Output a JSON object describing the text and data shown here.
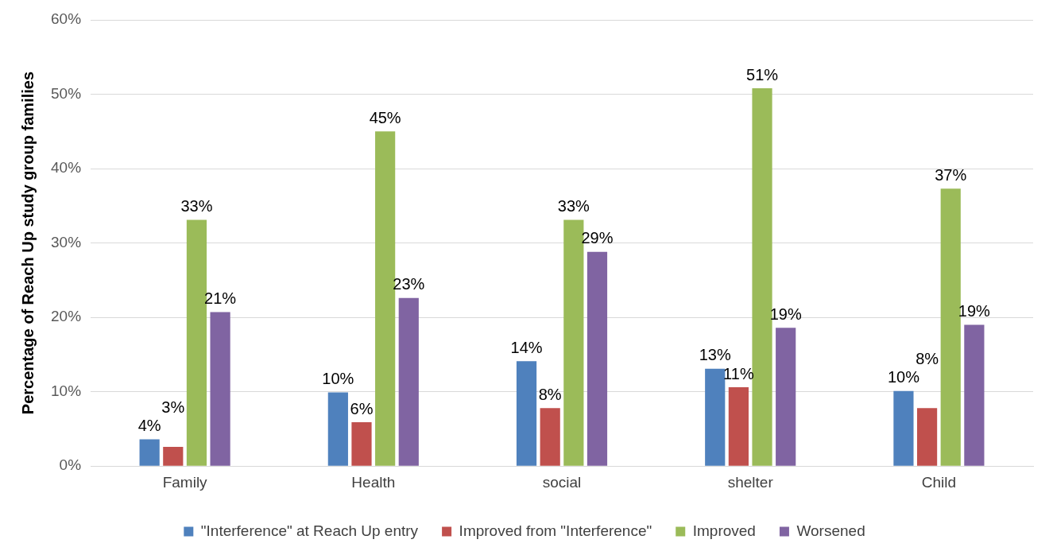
{
  "chart_data": {
    "type": "bar",
    "ylabel": "Percentage of Reach Up study group families",
    "categories": [
      "Family",
      "Health",
      "social",
      "shelter",
      "Child"
    ],
    "series": [
      {
        "name": "\"Interference\" at Reach Up entry",
        "color": "#4f81bd",
        "values": [
          3.6,
          9.9,
          14.1,
          13.1,
          10.1
        ],
        "value_labels": [
          "4%",
          "10%",
          "14%",
          "13%",
          "10%"
        ]
      },
      {
        "name": "Improved from \"Interference\"",
        "color": "#c0504d",
        "values": [
          2.6,
          5.9,
          7.8,
          10.6,
          7.8
        ],
        "value_labels": [
          "3%",
          "6%",
          "8%",
          "11%",
          "8%"
        ]
      },
      {
        "name": "Improved",
        "color": "#9bbb59",
        "values": [
          33.1,
          45.0,
          33.1,
          50.8,
          37.3
        ],
        "value_labels": [
          "33%",
          "45%",
          "33%",
          "51%",
          "37%"
        ]
      },
      {
        "name": "Worsened",
        "color": "#8064a2",
        "values": [
          20.7,
          22.6,
          28.8,
          18.6,
          19.0
        ],
        "value_labels": [
          "21%",
          "23%",
          "29%",
          "19%",
          "19%"
        ]
      }
    ],
    "ylim": [
      0,
      60
    ],
    "yticks": [
      {
        "value": 0,
        "label": "0%"
      },
      {
        "value": 10,
        "label": "10%"
      },
      {
        "value": 20,
        "label": "20%"
      },
      {
        "value": 30,
        "label": "30%"
      },
      {
        "value": 40,
        "label": "40%"
      },
      {
        "value": 50,
        "label": "50%"
      },
      {
        "value": 60,
        "label": "60%"
      }
    ],
    "grid": "y",
    "legend": "bottom"
  }
}
